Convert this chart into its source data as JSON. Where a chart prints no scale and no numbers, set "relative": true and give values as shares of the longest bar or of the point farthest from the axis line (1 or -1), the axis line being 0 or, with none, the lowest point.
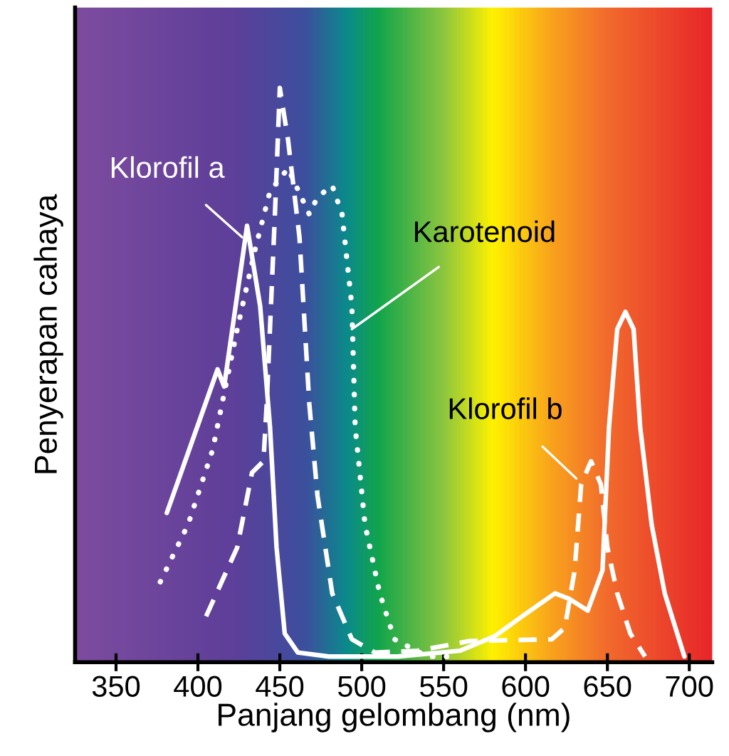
{
  "chart_data": {
    "type": "line",
    "relative": true,
    "xlabel": "Panjang gelombang (nm)",
    "ylabel": "Penyerapan cahaya",
    "xlim": [
      325,
      714
    ],
    "xticks": [
      350,
      400,
      450,
      500,
      550,
      600,
      650,
      700
    ],
    "grid": false,
    "legend": false,
    "marker": "none",
    "series": [
      {
        "color": "#ffffff",
        "line_style": "solid",
        "x": [
          381,
          412,
          416,
          430,
          438,
          444,
          448,
          453,
          461,
          480,
          522,
          560,
          581,
          598,
          618,
          627,
          638,
          647,
          651,
          656,
          661,
          666,
          670,
          677,
          685,
          697
        ],
        "values": [
          0.26,
          0.51,
          0.48,
          0.76,
          0.62,
          0.41,
          0.2,
          0.05,
          0.017,
          0.01,
          0.01,
          0.02,
          0.045,
          0.08,
          0.12,
          0.11,
          0.09,
          0.16,
          0.41,
          0.58,
          0.61,
          0.58,
          0.41,
          0.24,
          0.12,
          0.01
        ]
      },
      {
        "color": "#ffffff",
        "line_style": "dashed",
        "x": [
          405,
          424,
          433,
          440,
          442,
          447,
          450,
          455,
          462,
          468,
          473,
          482,
          494,
          508,
          534,
          566,
          616,
          624,
          630,
          634,
          640,
          646,
          650,
          656,
          664,
          673
        ],
        "values": [
          0.08,
          0.2,
          0.33,
          0.35,
          0.45,
          0.78,
          1.0,
          0.91,
          0.74,
          0.45,
          0.29,
          0.12,
          0.04,
          0.017,
          0.02,
          0.037,
          0.04,
          0.06,
          0.16,
          0.31,
          0.35,
          0.31,
          0.2,
          0.12,
          0.05,
          0.01
        ]
      },
      {
        "color": "#ffffff",
        "line_style": "dotted",
        "x": [
          377,
          394,
          409,
          424,
          435,
          444,
          455,
          468,
          473,
          482,
          488,
          494,
          496,
          502,
          511,
          520,
          540,
          560
        ],
        "values": [
          0.14,
          0.24,
          0.37,
          0.58,
          0.72,
          0.82,
          0.86,
          0.78,
          0.81,
          0.83,
          0.78,
          0.62,
          0.41,
          0.24,
          0.12,
          0.04,
          0.01,
          0.01
        ]
      }
    ],
    "annotations": [
      {
        "text": "Klorofil a",
        "x": 427,
        "y": 0.74
      },
      {
        "text": "Karotenoid",
        "x": 494,
        "y": 0.58
      },
      {
        "text": "Klorofil b",
        "x": 631,
        "y": 0.32
      }
    ]
  }
}
